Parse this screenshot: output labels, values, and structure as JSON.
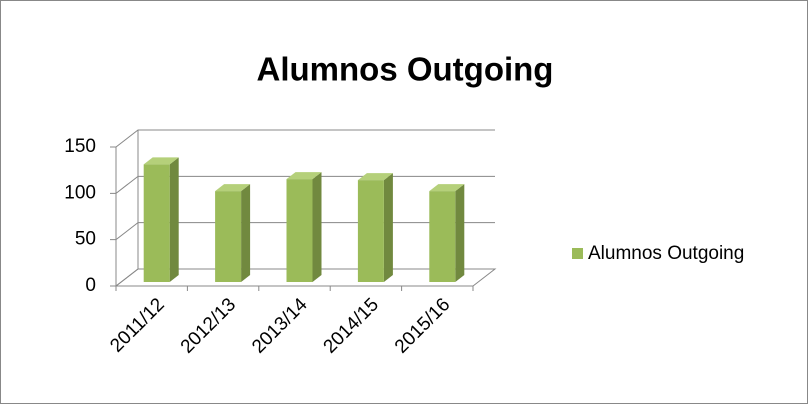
{
  "chart_data": {
    "type": "bar3d",
    "title": "Alumnos Outgoing",
    "categories": [
      "2011/12",
      "2012/13",
      "2013/14",
      "2014/15",
      "2015/16"
    ],
    "series": [
      {
        "name": "Alumnos Outgoing",
        "color": "#9bbb59",
        "values": [
          127,
          98,
          111,
          110,
          98
        ]
      }
    ],
    "ylim": [
      0,
      150
    ],
    "yticks": [
      0,
      50,
      100,
      150
    ],
    "grid": true,
    "legend": "right"
  }
}
